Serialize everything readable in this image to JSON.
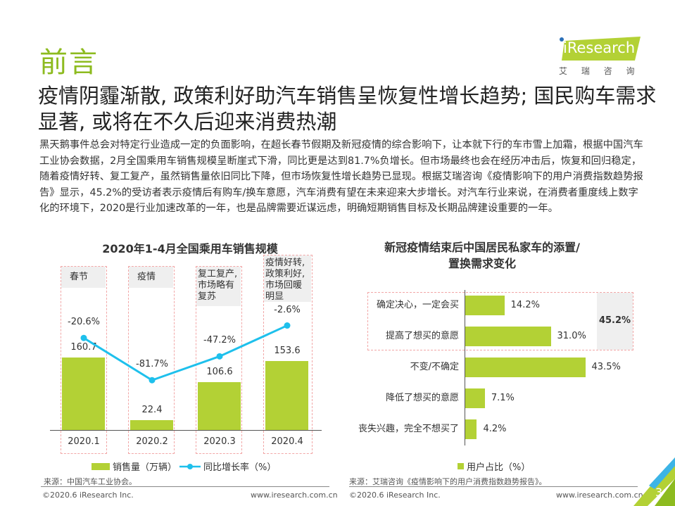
{
  "header": {
    "heading": "前言",
    "logo_text": "iResearch",
    "logo_sub": "艾 瑞 咨 询"
  },
  "subtitle": "疫情阴霾渐散, 政策利好助汽车销售呈恢复性增长趋势; 国民购车需求显著, 或将在不久后迎来消费热潮",
  "body": "黑天鹅事件总会对特定行业造成一定的负面影响，在超长春节假期及新冠疫情的综合影响下，让本就下行的车市雪上加霜，根据中国汽车工业协会数据，2月全国乘用车销售规模呈断崖式下滑，同比更是达到81.7%负增长。但市场最终也会在经历冲击后，恢复和回归稳定，随着疫情好转、复工复产，虽然销售量依旧同比下降，但市场恢复性增长趋势已显现。根据艾瑞咨询《疫情影响下的用户消费指数趋势报告》显示，45.2%的受访者表示疫情后有购车/换车意愿，汽车消费有望在未来迎来大步增长。对汽车行业来说，在消费者重度线上数字化的环境下，2020是行业加速改革的一年，也是品牌需要近谋远虑，明确短期销售目标及长期品牌建设重要的一年。",
  "chart_data": [
    {
      "type": "bar",
      "title": "2020年1-4月全国乘用车销售规模",
      "categories": [
        "2020.1",
        "2020.2",
        "2020.3",
        "2020.4"
      ],
      "annotations": [
        "春节",
        "疫情",
        "复工复产,市场略有复苏",
        "疫情好转,政策利好,市场回暖明显"
      ],
      "series": [
        {
          "name": "销售量（万辆）",
          "type": "bar",
          "values": [
            160.7,
            22.4,
            106.6,
            153.6
          ],
          "labels": [
            "160.7",
            "22.4",
            "106.6",
            "153.6"
          ],
          "color": "#b3d135"
        },
        {
          "name": "同比增长率（%）",
          "type": "line",
          "values": [
            -20.6,
            -81.7,
            -47.2,
            -2.6
          ],
          "labels": [
            "-20.6%",
            "-81.7%",
            "-47.2%",
            "-2.6%"
          ],
          "color": "#1ec0ec"
        }
      ],
      "legend": "bottom",
      "source": "来源：中国汽车工业协会。"
    },
    {
      "type": "bar",
      "orientation": "horizontal",
      "title": "新冠疫情结束后中国居民私家车的添置/置换需求变化",
      "categories": [
        "确定决心，一定会买",
        "提高了想买的意愿",
        "不变/不确定",
        "降低了想买的意愿",
        "丧失兴趣，完全不想买了"
      ],
      "series": [
        {
          "name": "用户占比（%）",
          "values": [
            14.2,
            31.0,
            43.5,
            7.1,
            4.2
          ],
          "labels": [
            "14.2%",
            "31.0%",
            "43.5%",
            "7.1%",
            "4.2%"
          ],
          "color": "#b3d135"
        }
      ],
      "group_total": "45.2%",
      "legend": "bottom",
      "source": "来源：艾瑞咨询《疫情影响下的用户消费指数趋势报告》。"
    }
  ],
  "footer": {
    "copyright": "©2020.6 iResearch Inc.",
    "url": "www.iresearch.com.cn",
    "page": "3"
  }
}
